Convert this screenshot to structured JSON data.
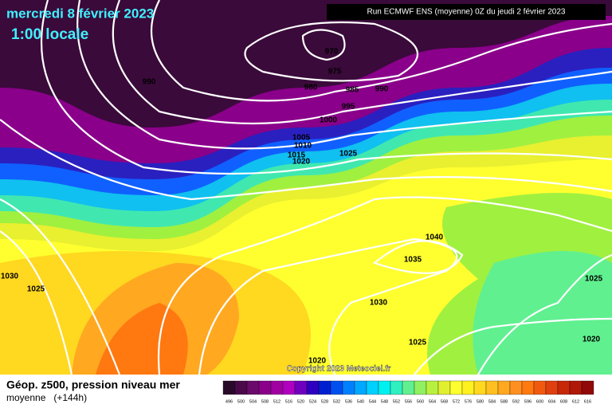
{
  "header": {
    "date": "mercredi 8 février 2023",
    "time": "1:00 locale",
    "run": "Run ECMWF ENS (moyenne) 0Z du jeudi 2 février 2023"
  },
  "isobar_labels": [
    "970",
    "975",
    "980",
    "985",
    "990",
    "990",
    "995",
    "1000",
    "1005",
    "1010",
    "1015",
    "1020",
    "1025",
    "1040",
    "1035",
    "1030",
    "1030",
    "1025",
    "1025",
    "1025",
    "1020",
    "1020"
  ],
  "copyright": "Copyright 2023 Meteociel.fr",
  "legend": {
    "title": "Géop. z500, pression niveau mer",
    "subtitle": "moyenne   (+144h)",
    "scale": [
      "496",
      "500",
      "504",
      "508",
      "512",
      "516",
      "520",
      "524",
      "528",
      "532",
      "536",
      "540",
      "544",
      "548",
      "552",
      "556",
      "560",
      "564",
      "568",
      "572",
      "576",
      "580",
      "584",
      "588",
      "592",
      "596",
      "600",
      "604",
      "608",
      "612",
      "616"
    ],
    "colors": [
      "#2a0a2a",
      "#4a0a4a",
      "#6a0a6a",
      "#8a008a",
      "#a000a0",
      "#b000c0",
      "#7000c0",
      "#3000c0",
      "#0020d0",
      "#0050f0",
      "#0080ff",
      "#00a8ff",
      "#00d0ff",
      "#00f0f0",
      "#30f0c0",
      "#60f090",
      "#90f060",
      "#b8f040",
      "#e0f030",
      "#ffff30",
      "#fff020",
      "#ffd820",
      "#ffc020",
      "#ffa820",
      "#ff9020",
      "#ff7810",
      "#f05a10",
      "#e04010",
      "#c82808",
      "#b01808",
      "#900808"
    ]
  }
}
